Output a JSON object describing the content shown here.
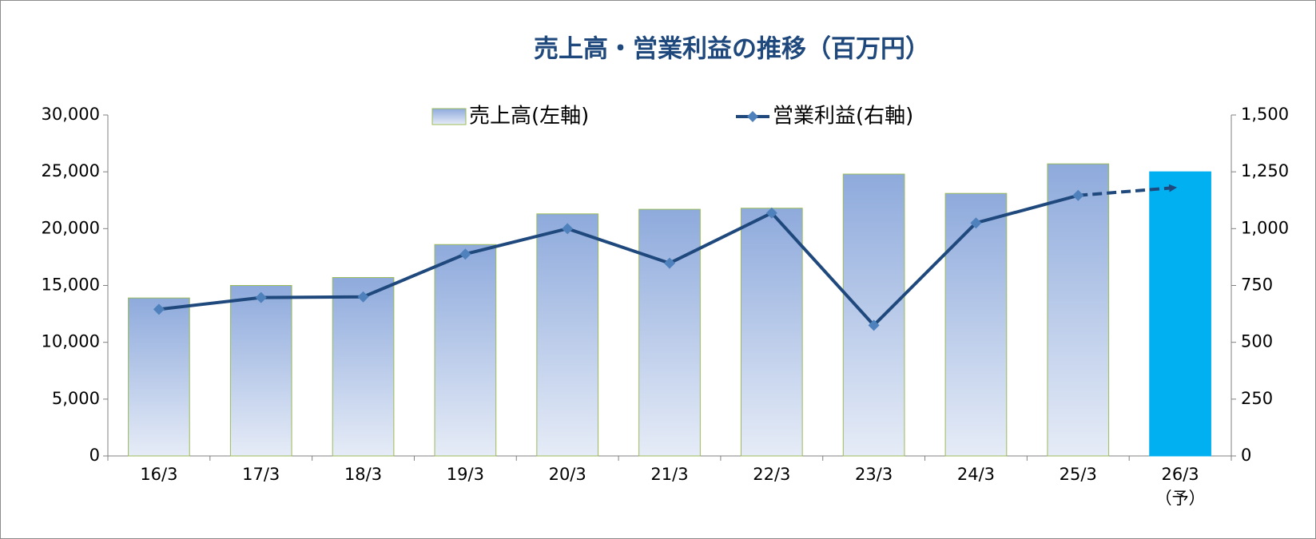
{
  "chart_data": {
    "type": "bar-line",
    "title": "売上高・営業利益の推移（百万円）",
    "categories": [
      "16/3",
      "17/3",
      "18/3",
      "19/3",
      "20/3",
      "21/3",
      "22/3",
      "23/3",
      "24/3",
      "25/3",
      "26/3\n（予）"
    ],
    "series": [
      {
        "name": "売上高(左軸)",
        "type": "bar",
        "color": "#8eaadc",
        "forecast_color": "#00b0f0",
        "values": [
          13900,
          15000,
          15700,
          18600,
          21300,
          21700,
          21800,
          24800,
          23100,
          25700,
          25000
        ]
      },
      {
        "name": "営業利益(右軸)",
        "type": "line",
        "axis": "y2",
        "color": "#1f497d",
        "marker_color": "#4f81bd",
        "values": [
          645,
          697,
          700,
          888,
          1000,
          848,
          1069,
          575,
          1025,
          1146,
          1180
        ]
      }
    ],
    "forecast_index": 10,
    "ylim": [
      0,
      30000
    ],
    "yticks": [
      0,
      {
        "value": 5000,
        "label": "5,000"
      },
      {
        "value": 10000,
        "label": "10,000"
      },
      {
        "value": 15000,
        "label": "15,000"
      },
      {
        "value": 20000,
        "label": "20,000"
      },
      {
        "value": 25000,
        "label": "25,000"
      },
      {
        "value": 30000,
        "label": "30,000"
      }
    ],
    "y2lim": [
      0,
      1500
    ],
    "y2ticks": [
      0,
      250,
      500,
      750,
      {
        "value": 1000,
        "label": "1,000"
      },
      {
        "value": 1250,
        "label": "1,250"
      },
      {
        "value": 1500,
        "label": "1,500"
      }
    ],
    "grid": false,
    "legend": "top"
  }
}
